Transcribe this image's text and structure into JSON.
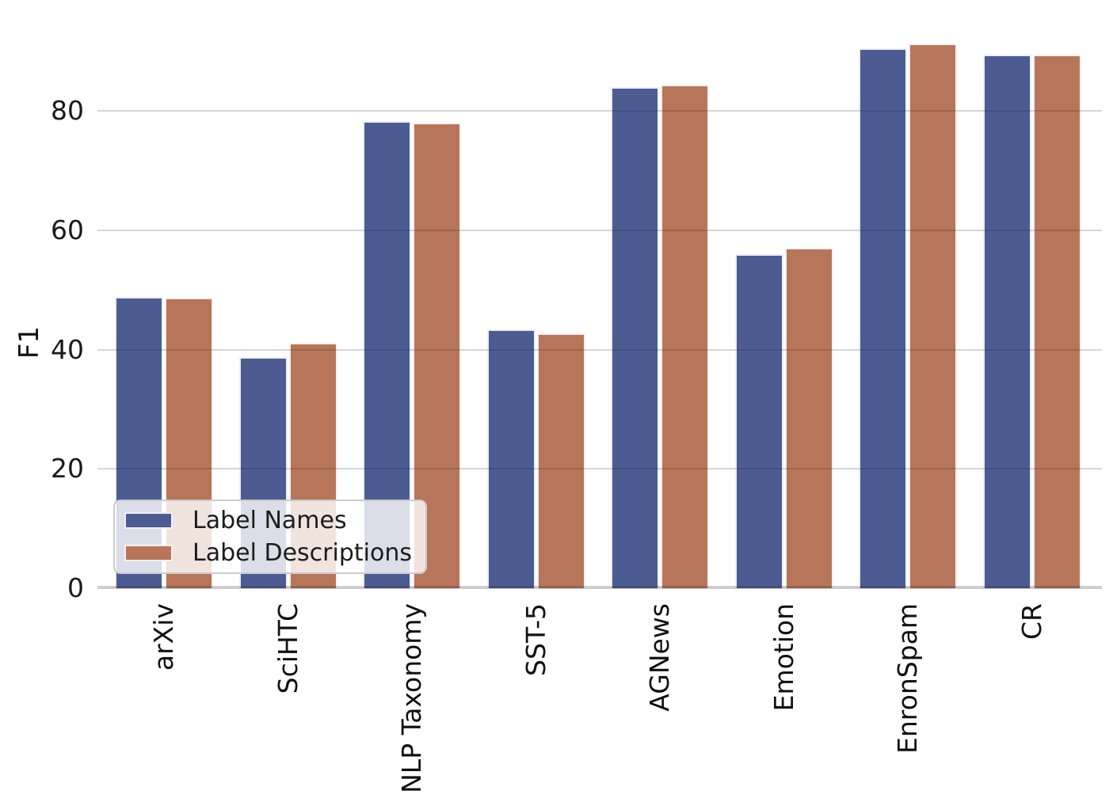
{
  "chart_data": {
    "type": "bar",
    "title": "",
    "xlabel": "",
    "ylabel": "F1",
    "categories": [
      "arXiv",
      "SciHTC",
      "NLP Taxonomy",
      "SST-5",
      "AGNews",
      "Emotion",
      "EnronSpam",
      "CR"
    ],
    "series": [
      {
        "name": "Label Names",
        "color": "#4c5c93",
        "values": [
          48.8,
          38.8,
          78.3,
          43.4,
          84.0,
          56.0,
          90.5,
          89.4
        ]
      },
      {
        "name": "Label Descriptions",
        "color": "#b7765a",
        "values": [
          48.7,
          41.1,
          78.0,
          42.7,
          84.4,
          57.0,
          91.3,
          89.5
        ]
      }
    ],
    "yticks": [
      0,
      20,
      40,
      60,
      80
    ],
    "ylim": [
      0,
      98.6
    ],
    "grid": true,
    "grid_color": "#cccccc",
    "bar_edge_color": "#ffffff",
    "legend_position": "lower left",
    "x_tick_rotation_deg": 90
  }
}
